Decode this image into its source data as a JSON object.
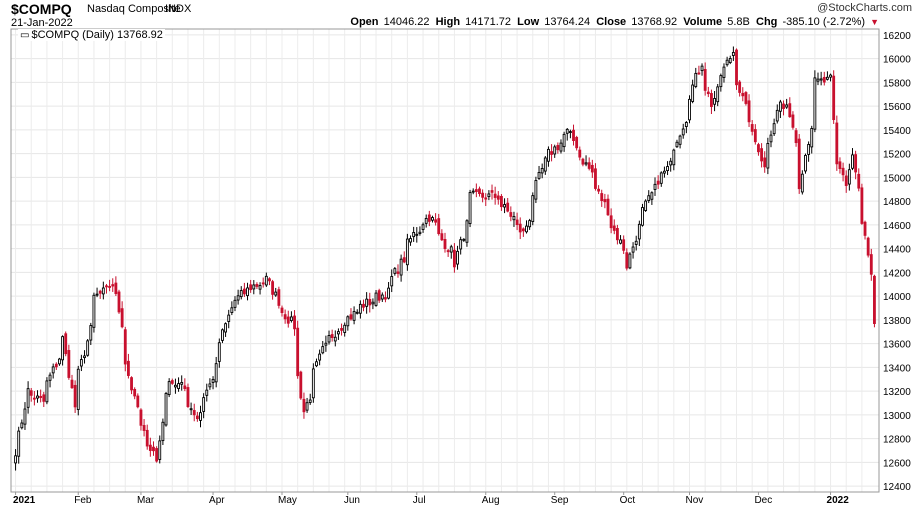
{
  "header": {
    "symbol": "$COMPQ",
    "name": "Nasdaq Composite",
    "exchange": "INDX",
    "brand": "@StockCharts.com",
    "date": "21-Jan-2022",
    "open_label": "Open",
    "open": "14046.22",
    "high_label": "High",
    "high": "14171.72",
    "low_label": "Low",
    "low": "13764.24",
    "close_label": "Close",
    "close": "13768.92",
    "volume_label": "Volume",
    "volume": "5.8B",
    "chg_label": "Chg",
    "chg": "-385.10 (-2.72%)",
    "chg_direction_icon": "triangle-down-icon"
  },
  "legend": {
    "text": "$COMPQ (Daily) 13768.92"
  },
  "colors": {
    "up": "#000000",
    "down": "#c8102e",
    "grid": "#e6e6e6",
    "border": "#999999"
  },
  "chart_data": {
    "type": "candlestick",
    "ylim": [
      12350,
      16250
    ],
    "y_ticks": [
      12400,
      12600,
      12800,
      13000,
      13200,
      13400,
      13600,
      13800,
      14000,
      14200,
      14400,
      14600,
      14800,
      15000,
      15200,
      15400,
      15600,
      15800,
      16000,
      16200
    ],
    "y_tick_labels": [
      "12400",
      "12600",
      "12800",
      "13000",
      "13200",
      "13400",
      "13600",
      "13800",
      "14000",
      "14200",
      "14400",
      "14600",
      "14800",
      "15000",
      "15200",
      "15400",
      "15600",
      "15800",
      "16000",
      "16200"
    ],
    "x_ticks": [
      {
        "label": "2021",
        "month": "2021-01"
      },
      {
        "label": "Feb",
        "month": "2021-02"
      },
      {
        "label": "Mar",
        "month": "2021-03"
      },
      {
        "label": "Apr",
        "month": "2021-04"
      },
      {
        "label": "May",
        "month": "2021-05"
      },
      {
        "label": "Jun",
        "month": "2021-06"
      },
      {
        "label": "Jul",
        "month": "2021-07"
      },
      {
        "label": "Aug",
        "month": "2021-08"
      },
      {
        "label": "Sep",
        "month": "2021-09"
      },
      {
        "label": "Oct",
        "month": "2021-10"
      },
      {
        "label": "Nov",
        "month": "2021-11"
      },
      {
        "label": "Dec",
        "month": "2021-12"
      },
      {
        "label": "2022",
        "month": "2022-01"
      }
    ],
    "close_waypoints": [
      [
        "2021-01-04",
        12700
      ],
      [
        "2021-01-08",
        13200
      ],
      [
        "2021-01-15",
        13110
      ],
      [
        "2021-01-25",
        13640
      ],
      [
        "2021-01-29",
        13070
      ],
      [
        "2021-02-08",
        13990
      ],
      [
        "2021-02-16",
        14100
      ],
      [
        "2021-02-25",
        13120
      ],
      [
        "2021-03-04",
        12720
      ],
      [
        "2021-03-08",
        12610
      ],
      [
        "2021-03-12",
        13320
      ],
      [
        "2021-03-19",
        13220
      ],
      [
        "2021-03-25",
        12980
      ],
      [
        "2021-03-31",
        13250
      ],
      [
        "2021-04-09",
        13900
      ],
      [
        "2021-04-16",
        14050
      ],
      [
        "2021-04-26",
        14140
      ],
      [
        "2021-04-30",
        13960
      ],
      [
        "2021-05-07",
        13750
      ],
      [
        "2021-05-12",
        13030
      ],
      [
        "2021-05-20",
        13540
      ],
      [
        "2021-05-28",
        13750
      ],
      [
        "2021-06-08",
        13930
      ],
      [
        "2021-06-18",
        14030
      ],
      [
        "2021-06-30",
        14520
      ],
      [
        "2021-07-07",
        14670
      ],
      [
        "2021-07-19",
        14280
      ],
      [
        "2021-07-26",
        14840
      ],
      [
        "2021-08-06",
        14840
      ],
      [
        "2021-08-18",
        14530
      ],
      [
        "2021-08-27",
        15130
      ],
      [
        "2021-09-07",
        15380
      ],
      [
        "2021-09-17",
        15040
      ],
      [
        "2021-09-28",
        14550
      ],
      [
        "2021-10-04",
        14260
      ],
      [
        "2021-10-08",
        14580
      ],
      [
        "2021-10-15",
        14900
      ],
      [
        "2021-10-22",
        15100
      ],
      [
        "2021-10-29",
        15500
      ],
      [
        "2021-11-05",
        15970
      ],
      [
        "2021-11-10",
        15620
      ],
      [
        "2021-11-19",
        16060
      ],
      [
        "2021-11-26",
        15500
      ],
      [
        "2021-12-01",
        15250
      ],
      [
        "2021-12-03",
        15080
      ],
      [
        "2021-12-10",
        15630
      ],
      [
        "2021-12-15",
        15550
      ],
      [
        "2021-12-20",
        14950
      ],
      [
        "2021-12-27",
        15800
      ],
      [
        "2022-01-03",
        15820
      ],
      [
        "2022-01-05",
        15100
      ],
      [
        "2022-01-10",
        14940
      ],
      [
        "2022-01-12",
        15190
      ],
      [
        "2022-01-14",
        14890
      ],
      [
        "2022-01-18",
        14500
      ],
      [
        "2022-01-20",
        14150
      ],
      [
        "2022-01-21",
        13768.92
      ]
    ]
  }
}
